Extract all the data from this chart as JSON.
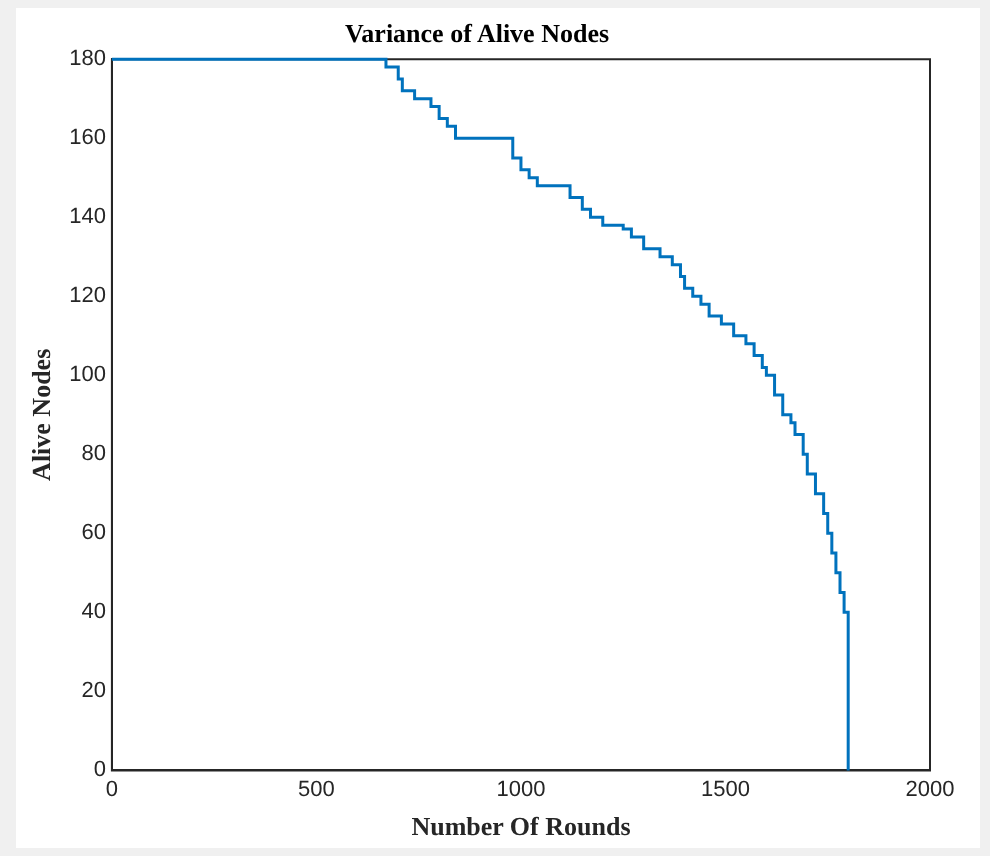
{
  "chart_data": {
    "type": "step",
    "title": "Variance of Alive Nodes",
    "xlabel": "Number Of Rounds",
    "ylabel": "Alive Nodes",
    "xlim": [
      0,
      2000
    ],
    "xticks": [
      0,
      500,
      1000,
      1500,
      2000
    ],
    "ylim": [
      0,
      180
    ],
    "yticks": [
      0,
      20,
      40,
      60,
      80,
      100,
      120,
      140,
      160,
      180
    ],
    "grid": false,
    "series": [
      {
        "color": "#0072bd",
        "x": [
          0,
          670,
          700,
          710,
          740,
          780,
          800,
          820,
          840,
          860,
          980,
          1000,
          1020,
          1040,
          1060,
          1120,
          1150,
          1170,
          1200,
          1250,
          1270,
          1300,
          1340,
          1370,
          1390,
          1400,
          1420,
          1440,
          1460,
          1490,
          1520,
          1550,
          1570,
          1590,
          1600,
          1620,
          1640,
          1660,
          1670,
          1690,
          1700,
          1720,
          1740,
          1750,
          1760,
          1770,
          1780,
          1790,
          1800,
          1800
        ],
        "values": [
          180,
          178,
          175,
          172,
          170,
          168,
          165,
          163,
          160,
          160,
          155,
          152,
          150,
          148,
          148,
          145,
          142,
          140,
          138,
          137,
          135,
          132,
          130,
          128,
          125,
          122,
          120,
          118,
          115,
          113,
          110,
          108,
          105,
          102,
          100,
          95,
          90,
          88,
          85,
          80,
          75,
          70,
          65,
          60,
          55,
          50,
          45,
          40,
          37,
          0
        ]
      }
    ]
  }
}
